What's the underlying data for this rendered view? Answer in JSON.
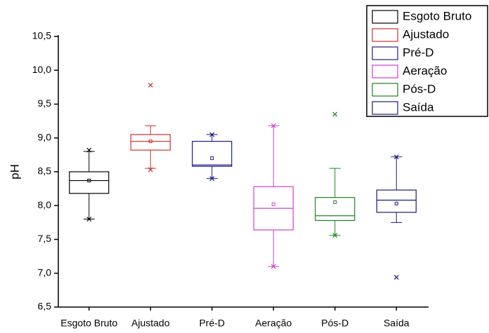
{
  "chart_data": {
    "type": "box",
    "ylabel": "pH",
    "categories": [
      "Esgoto Bruto",
      "Ajustado",
      "Pré-D",
      "Aeração",
      "Pós-D",
      "Saída"
    ],
    "series": [
      {
        "name": "Esgoto Bruto",
        "color": "#000000",
        "min": 7.8,
        "whisker_low": 7.8,
        "q1": 8.18,
        "median": 8.37,
        "q3": 8.5,
        "whisker_high": 8.8,
        "max": 8.82,
        "mean": 8.37
      },
      {
        "name": "Ajustado",
        "color": "#d03030",
        "min": 8.53,
        "whisker_low": 8.55,
        "q1": 8.82,
        "median": 8.95,
        "q3": 9.05,
        "whisker_high": 9.18,
        "max": 9.78,
        "mean": 8.95
      },
      {
        "name": "Pré-D",
        "color": "#1a1a8c",
        "min": 8.4,
        "whisker_low": 8.4,
        "q1": 8.58,
        "median": 8.6,
        "q3": 8.95,
        "whisker_high": 9.05,
        "max": 9.05,
        "mean": 8.7
      },
      {
        "name": "Aeração",
        "color": "#d040d0",
        "min": 7.1,
        "whisker_low": 7.1,
        "q1": 7.64,
        "median": 7.96,
        "q3": 8.28,
        "whisker_high": 9.18,
        "max": 9.18,
        "mean": 8.02
      },
      {
        "name": "Pós-D",
        "color": "#208020",
        "min": 7.56,
        "whisker_low": 7.56,
        "q1": 7.78,
        "median": 7.85,
        "q3": 8.12,
        "whisker_high": 8.55,
        "max": 9.35,
        "mean": 8.05
      },
      {
        "name": "Saída",
        "color": "#1a1a7a",
        "min": 6.94,
        "whisker_low": 7.75,
        "q1": 7.9,
        "median": 8.08,
        "q3": 8.23,
        "whisker_high": 8.72,
        "max": 8.72,
        "mean": 8.03
      }
    ],
    "ylim": [
      6.5,
      10.5
    ],
    "yticks": [
      {
        "value": 6.5,
        "label": "6,5"
      },
      {
        "value": 7.0,
        "label": "7,0"
      },
      {
        "value": 7.5,
        "label": "7,5"
      },
      {
        "value": 8.0,
        "label": "8,0"
      },
      {
        "value": 8.5,
        "label": "8,5"
      },
      {
        "value": 9.0,
        "label": "9,0"
      },
      {
        "value": 9.5,
        "label": "9,5"
      },
      {
        "value": 10.0,
        "label": "10,0"
      },
      {
        "value": 10.5,
        "label": "10,5"
      }
    ],
    "legend": "upper right"
  }
}
